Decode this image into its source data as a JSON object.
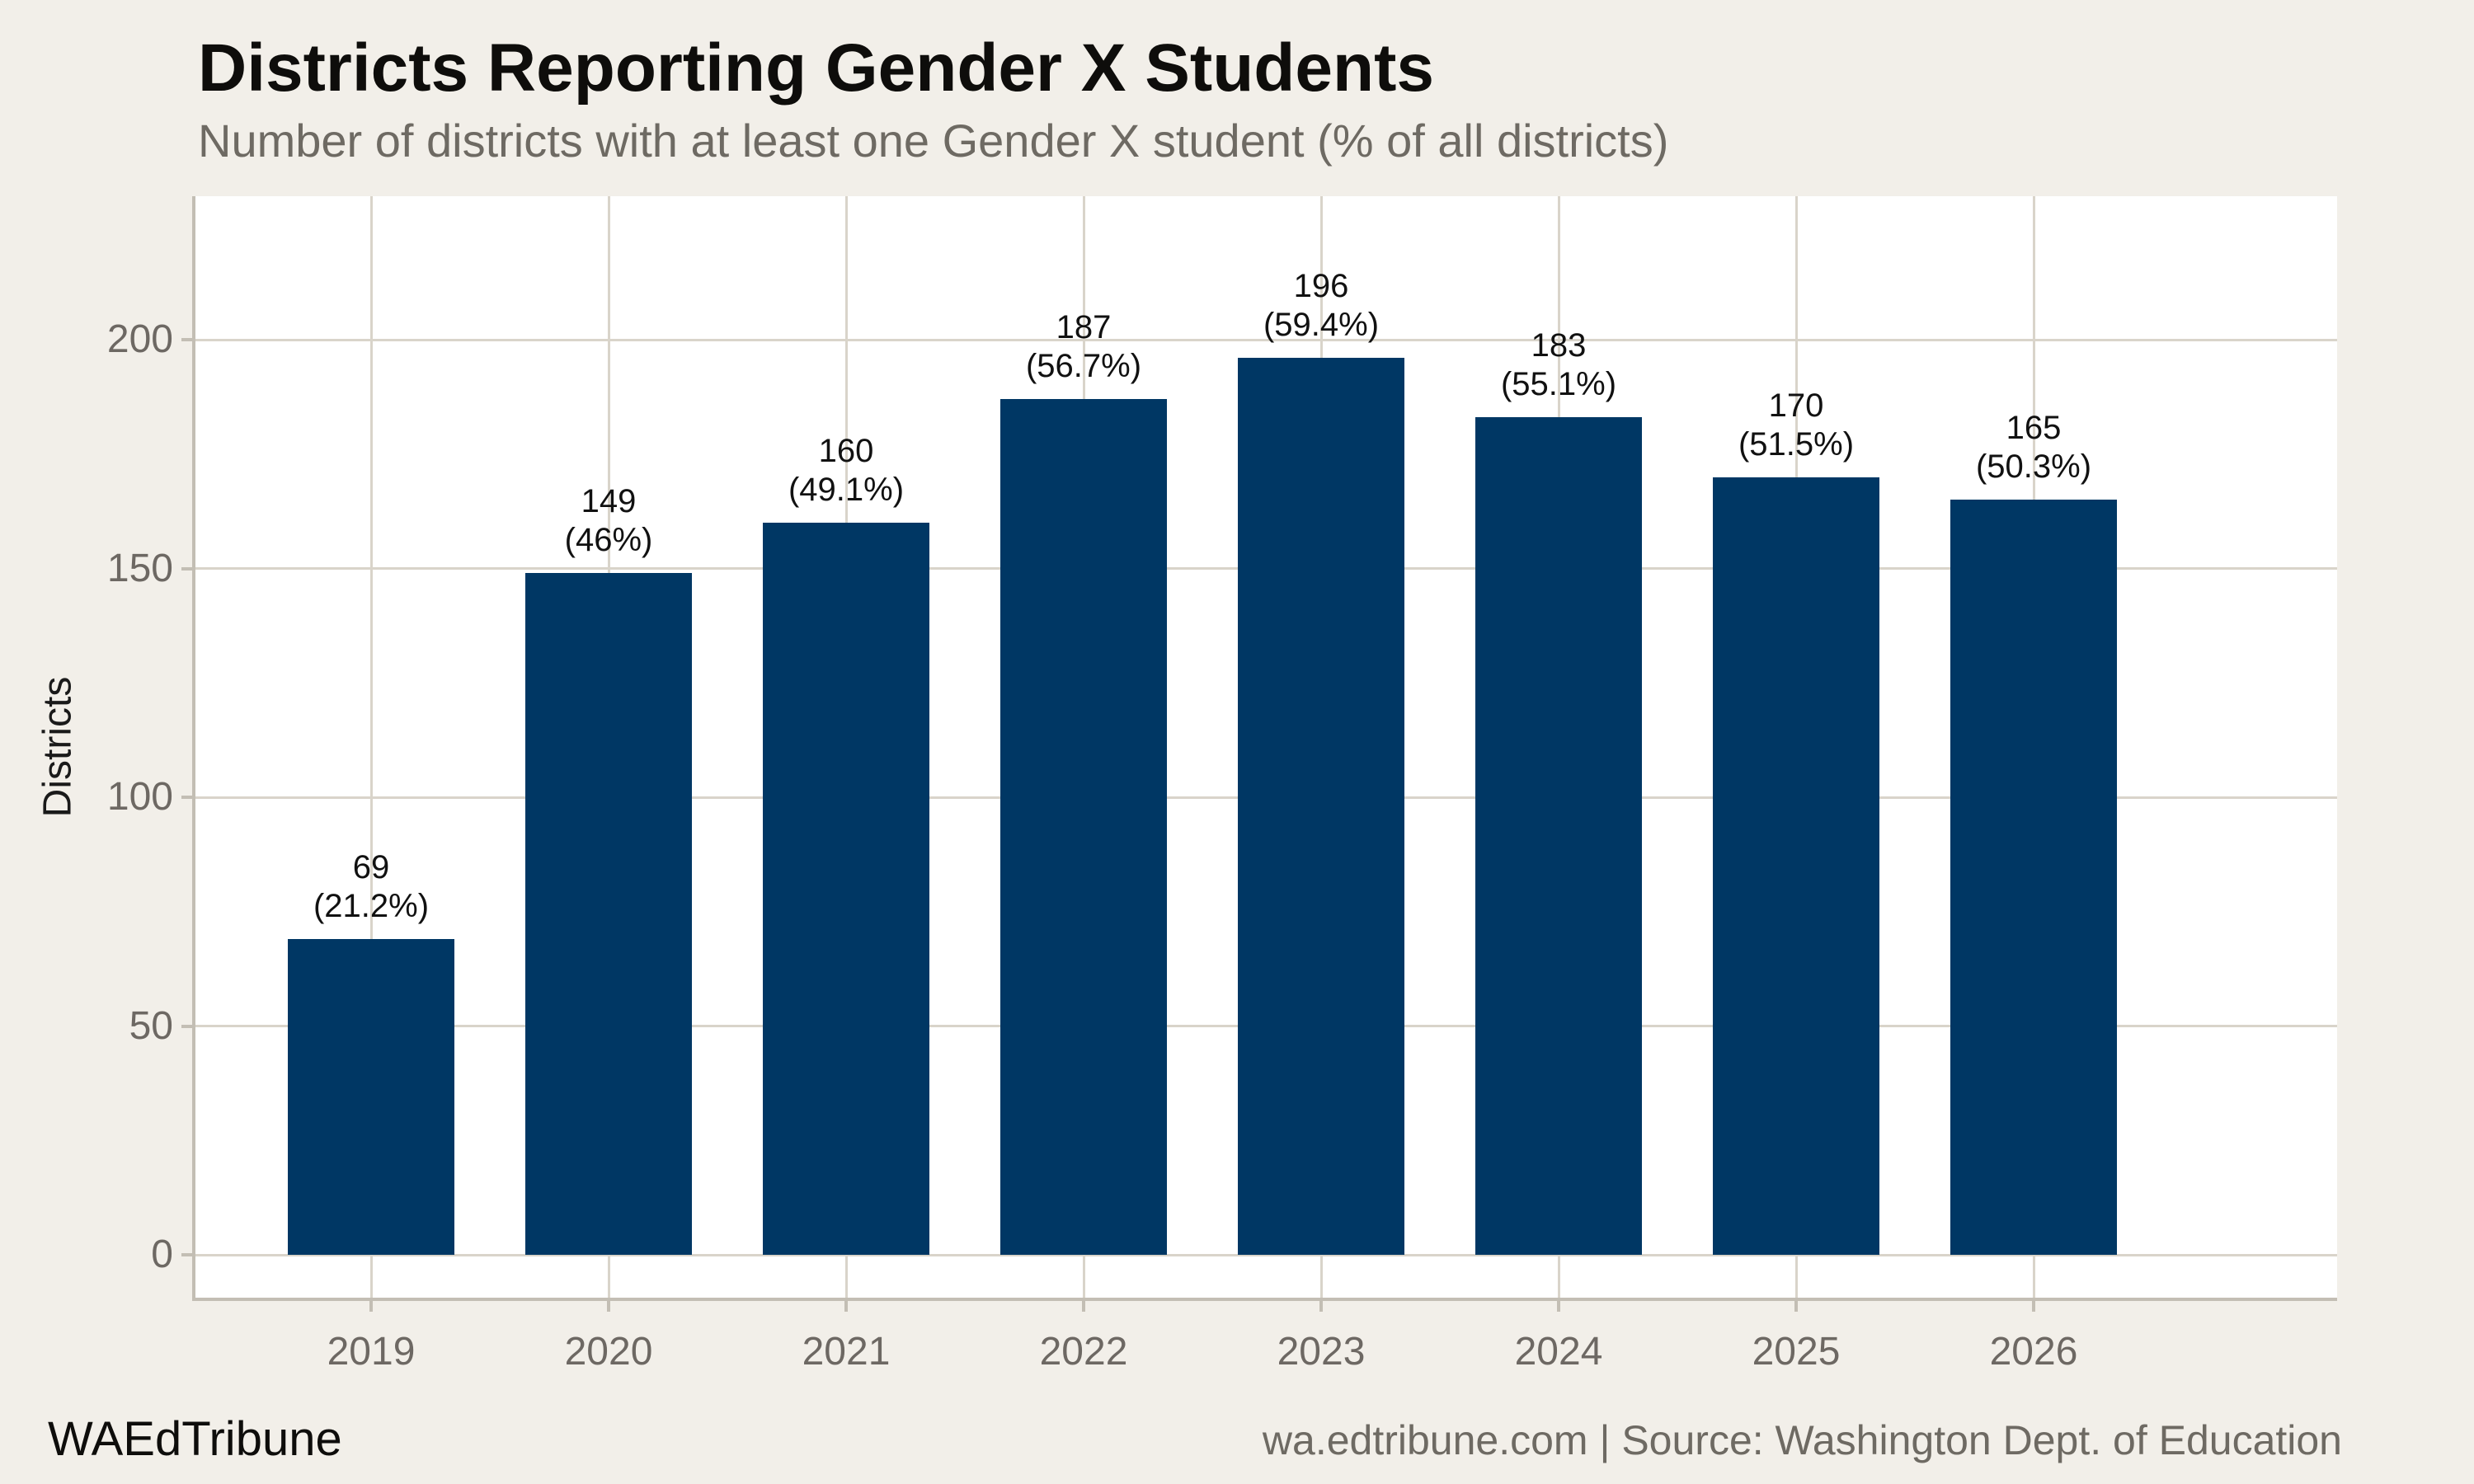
{
  "header": {
    "title": "Districts Reporting Gender X Students",
    "subtitle": "Number of districts with at least one Gender X student (% of all districts)"
  },
  "footer": {
    "left": "WAEdTribune",
    "right": "wa.edtribune.com | Source: Washington Dept. of Education"
  },
  "colors": {
    "background": "#f2efe9",
    "panel": "#ffffff",
    "bar": "#003764",
    "gridline": "#d9d4ca",
    "axis_line": "#c3beb4",
    "tick_label": "#6d6863",
    "title_text": "#0e0d0b",
    "subtitle_text": "#6e6a63",
    "bar_label": "#111111"
  },
  "chart_data": {
    "type": "bar",
    "title": "Districts Reporting Gender X Students",
    "subtitle": "Number of districts with at least one Gender X student (% of all districts)",
    "categories": [
      "2019",
      "2020",
      "2021",
      "2022",
      "2023",
      "2024",
      "2025",
      "2026"
    ],
    "values": [
      69,
      149,
      160,
      187,
      196,
      183,
      170,
      165
    ],
    "percent_labels": [
      "(21.2%)",
      "(46%)",
      "(49.1%)",
      "(56.7%)",
      "(59.4%)",
      "(55.1%)",
      "(51.5%)",
      "(50.3%)"
    ],
    "xlabel": "",
    "ylabel": "Districts",
    "yticks": [
      0,
      50,
      100,
      150,
      200
    ],
    "ylim": [
      -9.4,
      231.5
    ],
    "grid": "horizontal-and-vertical",
    "legend": "none",
    "bar_color": "#003764",
    "panel_background": "#ffffff",
    "outer_background": "#f2efe9"
  }
}
